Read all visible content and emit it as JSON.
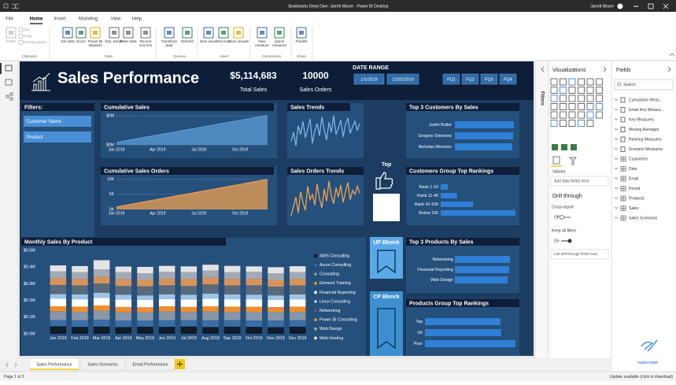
{
  "window": {
    "title": "Bookmarks Deep Dive- Jarrett Moore - Power BI Desktop",
    "user": "Jarrett Moore"
  },
  "ribbon": {
    "tabs": [
      "File",
      "Home",
      "Insert",
      "Modeling",
      "View",
      "Help"
    ],
    "groups": [
      {
        "name": "Clipboard",
        "buttons": [
          "Paste",
          "Cut",
          "Copy",
          "Format painter"
        ]
      },
      {
        "name": "Data",
        "buttons": [
          "Get data",
          "Excel",
          "Power BI datasets",
          "SQL Server",
          "Enter data",
          "Recent sources"
        ]
      },
      {
        "name": "Queries",
        "buttons": [
          "Transform data",
          "Refresh"
        ]
      },
      {
        "name": "Insert",
        "buttons": [
          "New visual",
          "Text box",
          "More visuals"
        ]
      },
      {
        "name": "Calculations",
        "buttons": [
          "New measure",
          "Quick measure"
        ]
      },
      {
        "name": "Share",
        "buttons": [
          "Publish"
        ]
      }
    ]
  },
  "report": {
    "title": "Sales Performance",
    "total_sales": "$5,114,683",
    "total_sales_label": "Total Sales",
    "sales_orders": "10000",
    "sales_orders_label": "Sales Orders",
    "date_range_label": "DATE RANGE",
    "start_date": "1/1/2019",
    "end_date": "12/31/2019",
    "quarters": [
      "FQ1",
      "FQ2",
      "FQ3",
      "FQ4"
    ],
    "filters": {
      "title": "Filters:",
      "options": [
        "Customer Name",
        "Product"
      ]
    },
    "top_label": "Top",
    "bookmarks": [
      "UP Bkmrk",
      "CP Bkmrk"
    ]
  },
  "chart_data": [
    {
      "type": "area",
      "title": "Cumulative Sales",
      "categories": [
        "Jan 2019",
        null,
        null,
        "Apr 2019",
        null,
        null,
        "Jul 2019",
        null,
        null,
        "Oct 2019",
        null,
        null
      ],
      "values": [
        420000,
        850000,
        1290000,
        1710000,
        2130000,
        2550000,
        2980000,
        3410000,
        3840000,
        4260000,
        4690000,
        5110000
      ],
      "color": "#5b9bd5",
      "ylim": [
        0,
        5600000
      ],
      "yticks": [
        {
          "value": 0,
          "label": "$0M"
        },
        {
          "value": 5000000,
          "label": "$5M"
        }
      ],
      "grid": true
    },
    {
      "type": "line",
      "title": "Sales Trends",
      "values": [
        52,
        60,
        48,
        66,
        58,
        70,
        55,
        63,
        72,
        50,
        61,
        68,
        57,
        74,
        62,
        53,
        69,
        60,
        75,
        58,
        64,
        71,
        56,
        67,
        73,
        59,
        65,
        70,
        62,
        68
      ],
      "color": "#7fb3e6"
    },
    {
      "type": "area",
      "title": "Cumulative Sales Orders",
      "categories": [
        "Jan 2019",
        null,
        null,
        "Apr 2019",
        null,
        null,
        "Jul 2019",
        null,
        null,
        "Oct 2019",
        null,
        null
      ],
      "values": [
        830,
        1660,
        2500,
        3330,
        4170,
        5000,
        5830,
        6670,
        7500,
        8330,
        9170,
        10000
      ],
      "color": "#f0a050",
      "ylim": [
        0,
        11000
      ],
      "yticks": [
        {
          "value": 0,
          "label": "0K"
        },
        {
          "value": 5000,
          "label": "5K"
        },
        {
          "value": 10000,
          "label": "10K"
        }
      ],
      "grid": true
    },
    {
      "type": "line",
      "title": "Sales Orders Trends",
      "values": [
        48,
        55,
        62,
        50,
        66,
        58,
        52,
        70,
        60,
        64,
        56,
        72,
        61,
        54,
        68,
        59,
        74,
        63,
        57,
        69,
        62,
        71,
        58,
        66,
        73,
        60,
        67,
        64,
        70,
        65
      ],
      "color": "#f0a050"
    },
    {
      "type": "bar",
      "orientation": "horizontal",
      "title": "Top 3 Customers By Sales",
      "categories": [
        "Justin Butler",
        "Gregory Simmons",
        "Nicholas Morrison"
      ],
      "values": [
        75000,
        74000,
        73000
      ],
      "color": "#2f80d6"
    },
    {
      "type": "bar",
      "orientation": "horizontal",
      "title": "Customers Group Top Rankings",
      "categories": [
        "Rank 1-10",
        "Rank 11-40",
        "Rank 41-100",
        "Below 100"
      ],
      "values": [
        9,
        20,
        40,
        92
      ],
      "color": "#2f80d6"
    },
    {
      "type": "bar",
      "stacked": true,
      "title": "Monthly Sales By Product",
      "legend": "right",
      "categories": [
        "Jan 2019",
        "Feb 2019",
        "Mar 2019",
        "Apr 2019",
        "May 2019",
        "Jun 2019",
        "Jul 2019",
        "Aug 2019",
        "Sep 2019",
        "Oct 2019",
        "Nov 2019",
        "Dec 2019"
      ],
      "ylim": [
        0,
        500000
      ],
      "yticks": [
        {
          "value": 0,
          "label": "$0.0M"
        },
        {
          "value": 100000,
          "label": "$0.1M"
        },
        {
          "value": 200000,
          "label": "$0.2M"
        },
        {
          "value": 300000,
          "label": "$0.3M"
        },
        {
          "value": 400000,
          "label": "$0.4M"
        },
        {
          "value": 500000,
          "label": "$0.5M"
        }
      ],
      "series": [
        {
          "name": "AWS Consulting",
          "color": "#0d1b2a",
          "values": [
            45000,
            42000,
            44000,
            41000,
            43000,
            42000,
            44000,
            41000,
            43000,
            42000,
            40000,
            43000
          ]
        },
        {
          "name": "Azure Consulting",
          "color": "#3a6ea5",
          "values": [
            38000,
            40000,
            41000,
            39000,
            37000,
            40000,
            38000,
            41000,
            39000,
            38000,
            40000,
            39000
          ]
        },
        {
          "name": "Consulting",
          "color": "#8796a8",
          "values": [
            52000,
            50000,
            53000,
            51000,
            50000,
            52000,
            49000,
            51000,
            50000,
            52000,
            51000,
            50000
          ]
        },
        {
          "name": "Element Training",
          "color": "#f28e2b",
          "values": [
            30000,
            31000,
            32000,
            30000,
            29000,
            31000,
            30000,
            32000,
            31000,
            30000,
            29000,
            31000
          ]
        },
        {
          "name": "Financial Reporting",
          "color": "#ffffff",
          "values": [
            45000,
            44000,
            46000,
            45000,
            44000,
            43000,
            45000,
            46000,
            44000,
            45000,
            43000,
            44000
          ]
        },
        {
          "name": "Linux Consulting",
          "color": "#9ec5e8",
          "values": [
            28000,
            29000,
            30000,
            28000,
            27000,
            29000,
            28000,
            30000,
            29000,
            28000,
            27000,
            29000
          ]
        },
        {
          "name": "Networking",
          "color": "#5a6a7a",
          "values": [
            55000,
            54000,
            56000,
            53000,
            55000,
            54000,
            53000,
            55000,
            54000,
            56000,
            53000,
            54000
          ]
        },
        {
          "name": "Power BI Consulting",
          "color": "#d9935a",
          "values": [
            40000,
            39000,
            41000,
            40000,
            38000,
            39000,
            41000,
            40000,
            39000,
            38000,
            40000,
            39000
          ]
        },
        {
          "name": "Web Design",
          "color": "#a3aab3",
          "values": [
            42000,
            41000,
            43000,
            42000,
            40000,
            41000,
            42000,
            43000,
            41000,
            42000,
            40000,
            41000
          ]
        },
        {
          "name": "Web Hosting",
          "color": "#e4e4e4",
          "values": [
            35000,
            36000,
            55000,
            34000,
            38000,
            36000,
            34000,
            35000,
            37000,
            33000,
            36000,
            35000
          ]
        }
      ]
    },
    {
      "type": "bar",
      "orientation": "horizontal",
      "title": "Top 3 Products By Sales",
      "categories": [
        "Networking",
        "Financial Reporting",
        "Web Design"
      ],
      "values": [
        70000,
        69000,
        67000
      ],
      "color": "#2f80d6"
    },
    {
      "type": "bar",
      "orientation": "horizontal",
      "title": "Products Group Top Rankings",
      "categories": [
        "Top",
        "Ok",
        "Poor"
      ],
      "values": [
        95,
        96,
        114
      ],
      "color": "#2f80d6"
    }
  ],
  "visualizations_pane": {
    "title": "Visualizations",
    "filters_tab": "Filters",
    "values_label": "Values",
    "values_placeholder": "Add data fields here",
    "drill_through": "Drill through",
    "cross_report": "Cross-report",
    "cross_report_state": "Off",
    "keep_all_filters": "Keep all filters",
    "keep_all_filters_state": "On",
    "drill_placeholder": "Add drill-through fields here"
  },
  "fields_pane": {
    "title": "Fields",
    "search": "Search",
    "tables": [
      "Cumulative Meas...",
      "Email Key Measur...",
      "Key Measures",
      "Moving Averages",
      "Ranking Measures",
      "Scenario Measures",
      "Customers",
      "Date",
      "Email",
      "Period",
      "Products",
      "Sales",
      "Sales Scenarios"
    ],
    "subscribe": "SUBSCRIBE"
  },
  "page_tabs": [
    "Sales Performance",
    "Sales Scenarios",
    "Email Performance"
  ],
  "status": {
    "page": "Page 1 of 3",
    "update": "Update available (click to download)"
  }
}
